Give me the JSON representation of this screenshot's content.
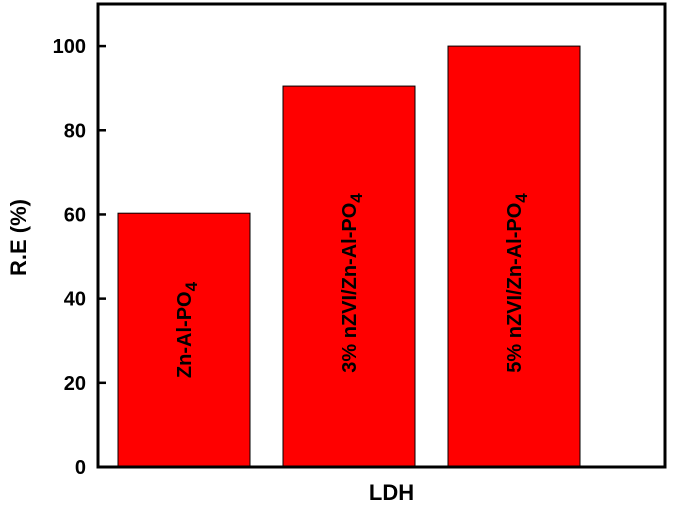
{
  "chart_data": {
    "type": "bar",
    "title": "",
    "xlabel": "LDH",
    "ylabel": "R.E (%)",
    "ylim": [
      0,
      110
    ],
    "yticks": [
      0,
      20,
      40,
      60,
      80,
      100
    ],
    "grid": false,
    "legend": "none",
    "categories": [
      {
        "main": "Zn-Al-PO",
        "sub": "4"
      },
      {
        "main": "3% nZVI/Zn-Al-PO",
        "sub": "4"
      },
      {
        "main": "5% nZVI/Zn-Al-PO",
        "sub": "4"
      }
    ],
    "values": [
      60.3,
      90.5,
      100
    ],
    "bar_color": "#ff0000",
    "bar_edge_color": "#000000"
  }
}
